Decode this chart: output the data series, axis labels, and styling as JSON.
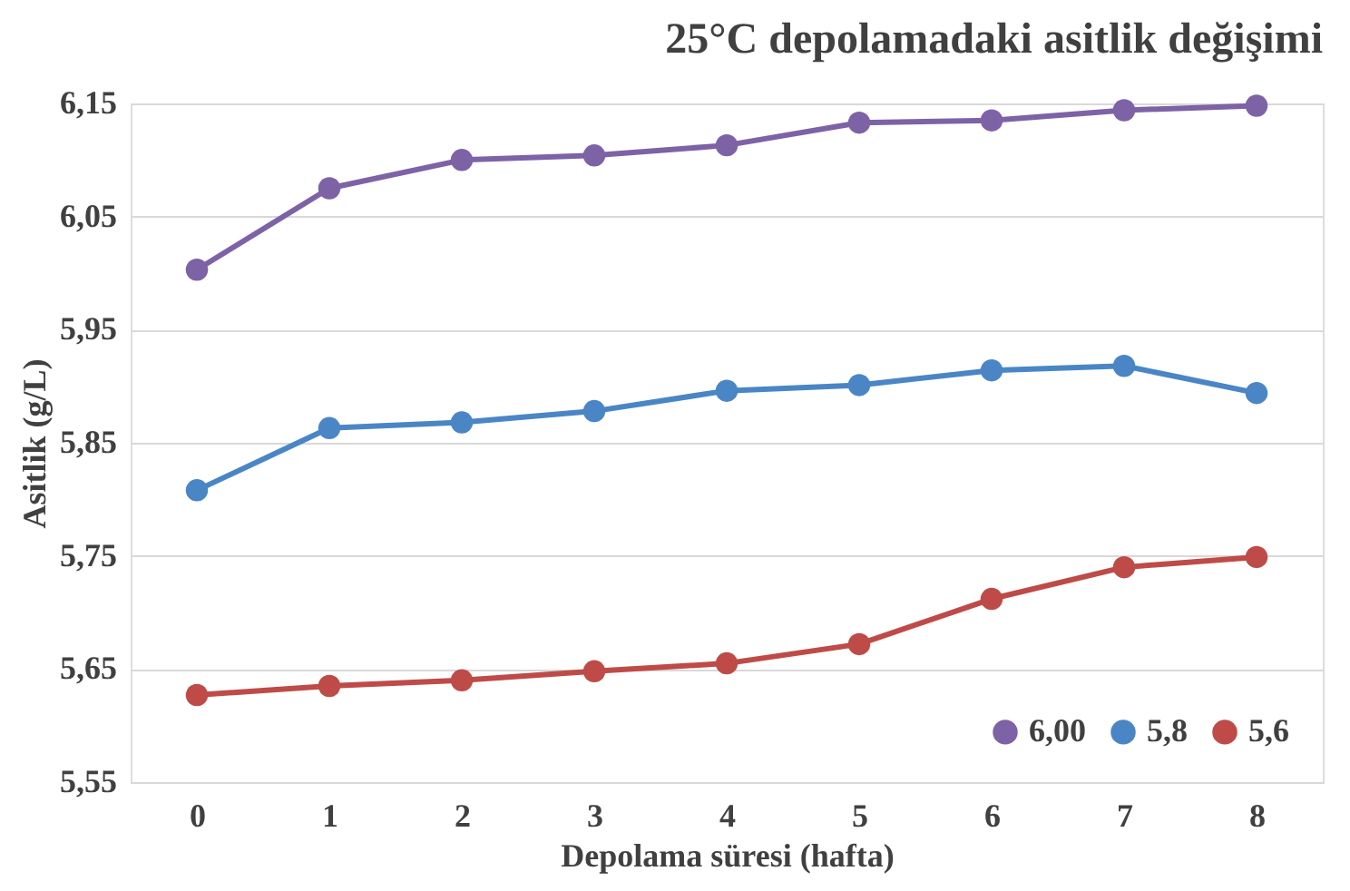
{
  "chart_data": {
    "type": "line",
    "title": "25°C depolamadaki asitlik değişimi",
    "xlabel": "Depolama süresi (hafta)",
    "ylabel": "Asitlik (g/L)",
    "categories": [
      "0",
      "1",
      "2",
      "3",
      "4",
      "5",
      "6",
      "7",
      "8"
    ],
    "series": [
      {
        "name": "6,00",
        "color": "#7e62a6",
        "values": [
          6.003,
          6.075,
          6.1,
          6.104,
          6.113,
          6.133,
          6.135,
          6.144,
          6.148
        ]
      },
      {
        "name": "5,8",
        "color": "#4a86c5",
        "values": [
          5.808,
          5.863,
          5.868,
          5.878,
          5.896,
          5.901,
          5.914,
          5.918,
          5.894
        ]
      },
      {
        "name": "5,6",
        "color": "#be4b48",
        "values": [
          5.627,
          5.635,
          5.64,
          5.648,
          5.655,
          5.672,
          5.712,
          5.74,
          5.749
        ]
      }
    ],
    "ylim": [
      5.55,
      6.15
    ],
    "yticks": [
      {
        "value": 5.55,
        "label": "5,55"
      },
      {
        "value": 5.65,
        "label": "5,65"
      },
      {
        "value": 5.75,
        "label": "5,75"
      },
      {
        "value": 5.85,
        "label": "5,85"
      },
      {
        "value": 5.95,
        "label": "5,95"
      },
      {
        "value": 6.05,
        "label": "6,05"
      },
      {
        "value": 6.15,
        "label": "6,15"
      }
    ],
    "grid": "y",
    "legend": "bottom right",
    "marker": "circle",
    "line_style": "solid"
  }
}
